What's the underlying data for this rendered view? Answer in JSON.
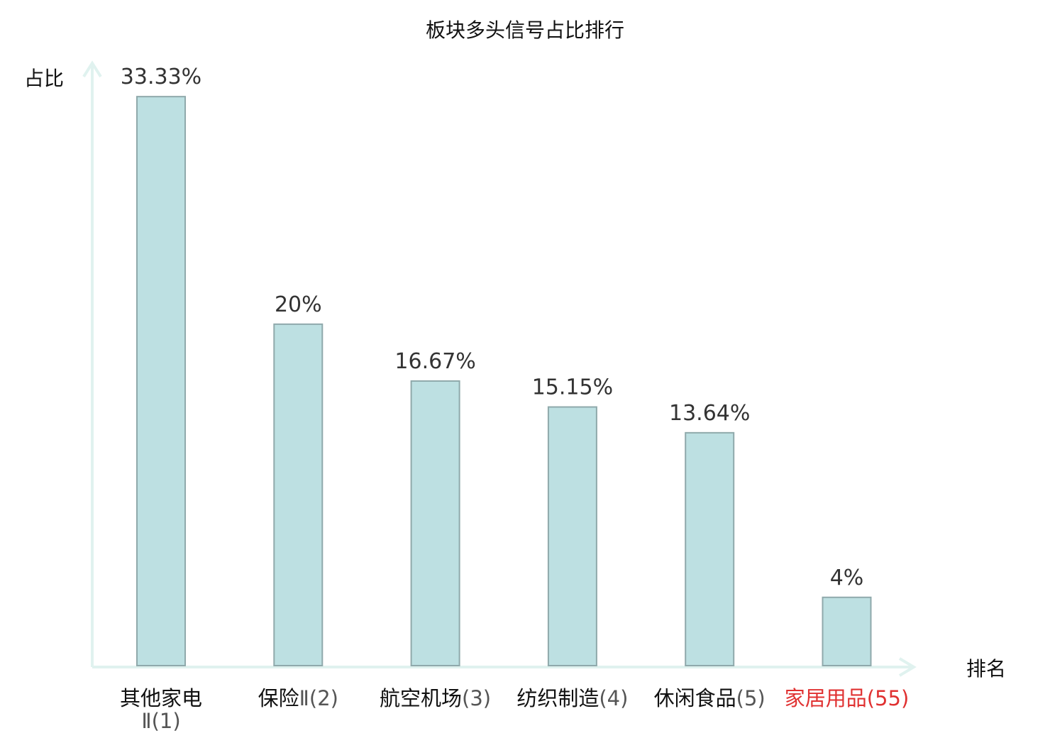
{
  "chart_data": {
    "type": "bar",
    "title": "板块多头信号占比排行",
    "xlabel": "排名",
    "ylabel": "占比",
    "categories": [
      "其他家电Ⅱ(1)",
      "保险Ⅱ(2)",
      "航空机场(3)",
      "纺织制造(4)",
      "休闲食品(5)",
      "家居用品(55)"
    ],
    "category_parts": [
      {
        "name": "其他家电",
        "rank": "Ⅱ(1)"
      },
      {
        "name": "保险",
        "rank": "Ⅱ(2)"
      },
      {
        "name": "航空机场",
        "rank": "(3)"
      },
      {
        "name": "纺织制造",
        "rank": "(4)"
      },
      {
        "name": "休闲食品",
        "rank": "(5)"
      },
      {
        "name": "家居用品",
        "rank": "(55)"
      }
    ],
    "values": [
      33.33,
      20,
      16.67,
      15.15,
      13.64,
      4
    ],
    "value_labels": [
      "33.33%",
      "20%",
      "16.67%",
      "15.15%",
      "13.64%",
      "4%"
    ],
    "ylim": [
      0,
      34.5
    ],
    "grid": false,
    "highlight_index": 5,
    "colors": {
      "bar_fill": "#bde0e2",
      "bar_stroke": "#8fa9ab",
      "axis": "#e0f2ef",
      "label": "#111111",
      "rank_label": "#555555",
      "highlight": "#e03131"
    }
  }
}
